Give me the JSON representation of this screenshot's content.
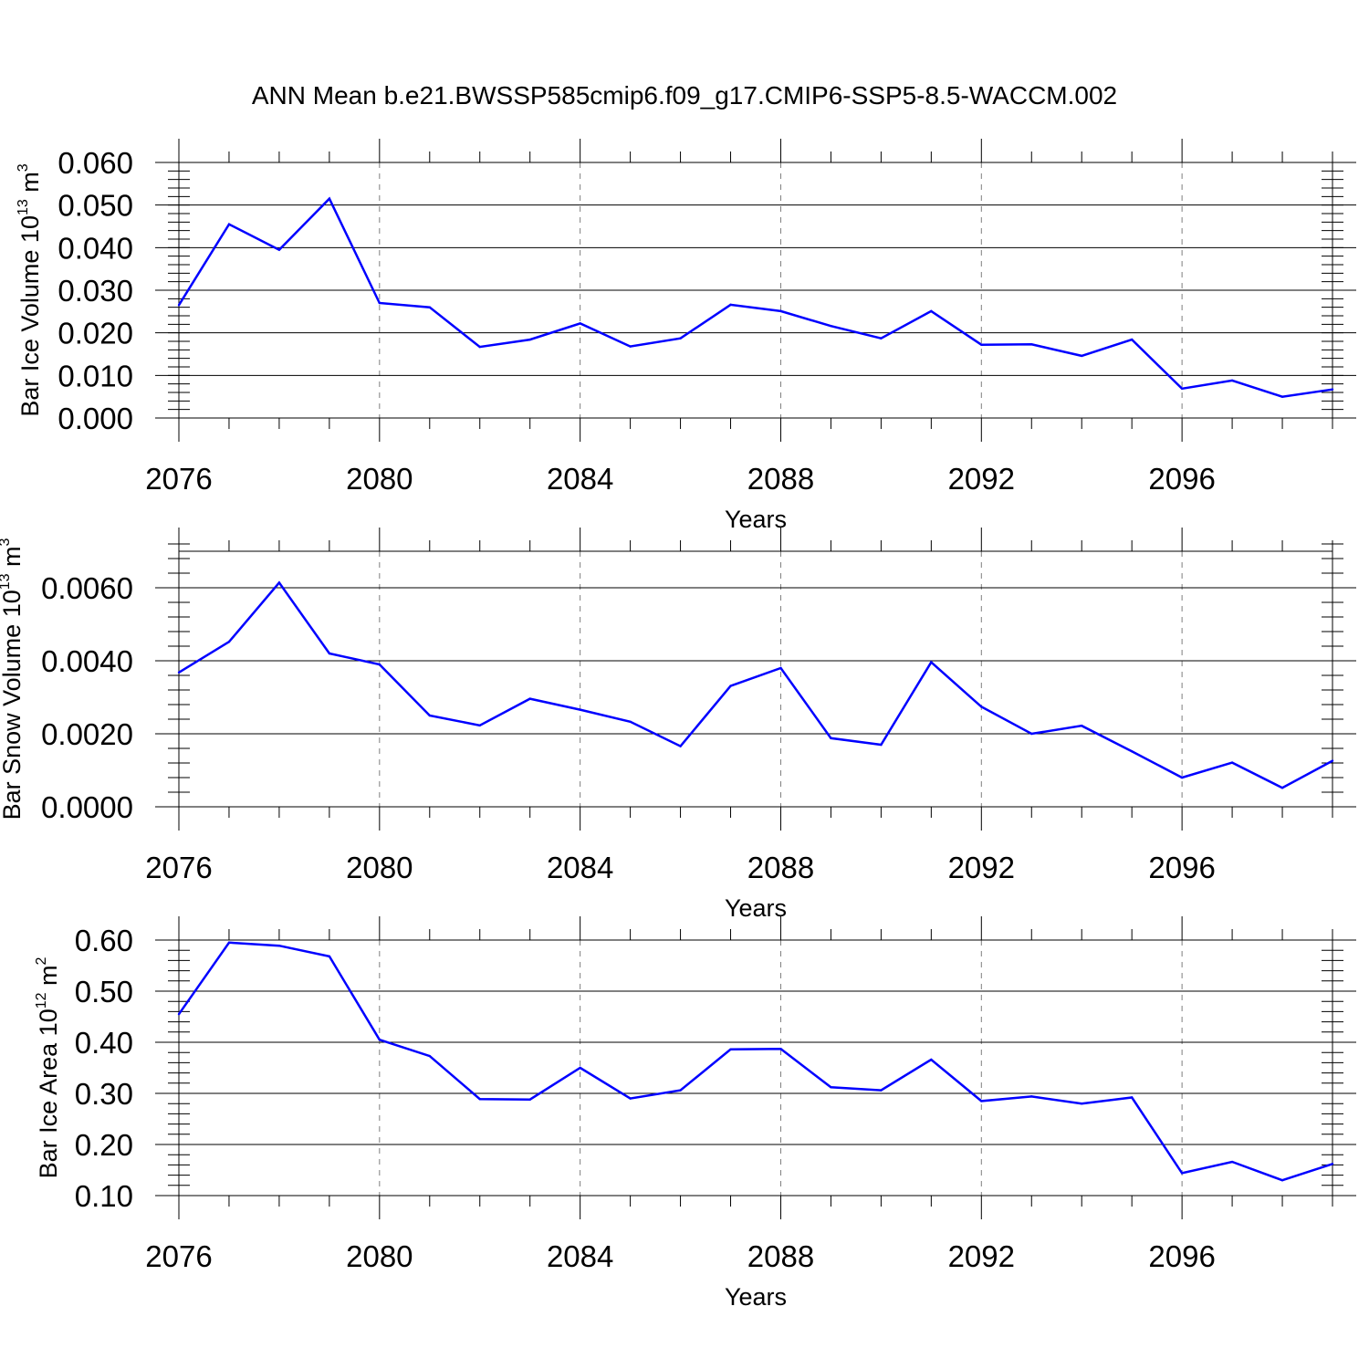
{
  "title": "ANN Mean b.e21.BWSSP585cmip6.f09_g17.CMIP6-SSP5-8.5-WACCM.002",
  "chart_data": [
    {
      "type": "line",
      "xlabel": "Years",
      "ylabel": {
        "base": "Bar Ice Volume 10",
        "exp": "13",
        "unit": " m",
        "unit_exp": "3"
      },
      "xlim": [
        2076,
        2099
      ],
      "ylim": [
        0.0,
        0.06
      ],
      "xticks": [
        2076,
        2080,
        2084,
        2088,
        2092,
        2096
      ],
      "xtick_labels": [
        "2076",
        "2080",
        "2084",
        "2088",
        "2092",
        "2096"
      ],
      "yticks": [
        0.0,
        0.01,
        0.02,
        0.03,
        0.04,
        0.05,
        0.06
      ],
      "ytick_labels": [
        "0.000",
        "0.010",
        "0.020",
        "0.030",
        "0.040",
        "0.050",
        "0.060"
      ],
      "grid": "vertical dashed at labeled years",
      "line_color": "#0000ff",
      "x": [
        2076,
        2077,
        2078,
        2079,
        2080,
        2081,
        2082,
        2083,
        2084,
        2085,
        2086,
        2087,
        2088,
        2089,
        2090,
        2091,
        2092,
        2093,
        2094,
        2095,
        2096,
        2097,
        2098,
        2099
      ],
      "y": [
        0.0265,
        0.0455,
        0.0395,
        0.0515,
        0.027,
        0.026,
        0.0167,
        0.0184,
        0.0222,
        0.0168,
        0.0187,
        0.0266,
        0.0251,
        0.0216,
        0.0187,
        0.0251,
        0.0172,
        0.0173,
        0.0146,
        0.0184,
        0.0069,
        0.0088,
        0.005,
        0.0067
      ]
    },
    {
      "type": "line",
      "xlabel": "Years",
      "ylabel": {
        "base": "Bar Snow Volume 10",
        "exp": "13",
        "unit": " m",
        "unit_exp": "3"
      },
      "xlim": [
        2076,
        2099
      ],
      "ylim": [
        0.0,
        0.007
      ],
      "xticks": [
        2076,
        2080,
        2084,
        2088,
        2092,
        2096
      ],
      "xtick_labels": [
        "2076",
        "2080",
        "2084",
        "2088",
        "2092",
        "2096"
      ],
      "yticks": [
        0.0,
        0.002,
        0.004,
        0.006
      ],
      "ytick_labels": [
        "0.0000",
        "0.0020",
        "0.0040",
        "0.0060"
      ],
      "grid": "vertical dashed at labeled years",
      "line_color": "#0000ff",
      "x": [
        2076,
        2077,
        2078,
        2079,
        2080,
        2081,
        2082,
        2083,
        2084,
        2085,
        2086,
        2087,
        2088,
        2089,
        2090,
        2091,
        2092,
        2093,
        2094,
        2095,
        2096,
        2097,
        2098,
        2099
      ],
      "y": [
        0.00368,
        0.00452,
        0.00614,
        0.0042,
        0.0039,
        0.0025,
        0.00223,
        0.00296,
        0.00266,
        0.00233,
        0.00166,
        0.00331,
        0.0038,
        0.00188,
        0.0017,
        0.00396,
        0.00274,
        0.002,
        0.00222,
        0.00152,
        0.0008,
        0.00121,
        0.00052,
        0.00126
      ]
    },
    {
      "type": "line",
      "xlabel": "Years",
      "ylabel": {
        "base": "Bar Ice Area 10",
        "exp": "12",
        "unit": " m",
        "unit_exp": "2"
      },
      "xlim": [
        2076,
        2099
      ],
      "ylim": [
        0.1,
        0.6
      ],
      "xticks": [
        2076,
        2080,
        2084,
        2088,
        2092,
        2096
      ],
      "xtick_labels": [
        "2076",
        "2080",
        "2084",
        "2088",
        "2092",
        "2096"
      ],
      "yticks": [
        0.1,
        0.2,
        0.3,
        0.4,
        0.5,
        0.6
      ],
      "ytick_labels": [
        "0.10",
        "0.20",
        "0.30",
        "0.40",
        "0.50",
        "0.60"
      ],
      "grid": "vertical dashed at labeled years",
      "line_color": "#0000ff",
      "x": [
        2076,
        2077,
        2078,
        2079,
        2080,
        2081,
        2082,
        2083,
        2084,
        2085,
        2086,
        2087,
        2088,
        2089,
        2090,
        2091,
        2092,
        2093,
        2094,
        2095,
        2096,
        2097,
        2098,
        2099
      ],
      "y": [
        0.455,
        0.595,
        0.589,
        0.568,
        0.405,
        0.373,
        0.289,
        0.288,
        0.35,
        0.29,
        0.306,
        0.386,
        0.387,
        0.312,
        0.306,
        0.366,
        0.285,
        0.294,
        0.28,
        0.292,
        0.144,
        0.166,
        0.13,
        0.162
      ]
    }
  ]
}
